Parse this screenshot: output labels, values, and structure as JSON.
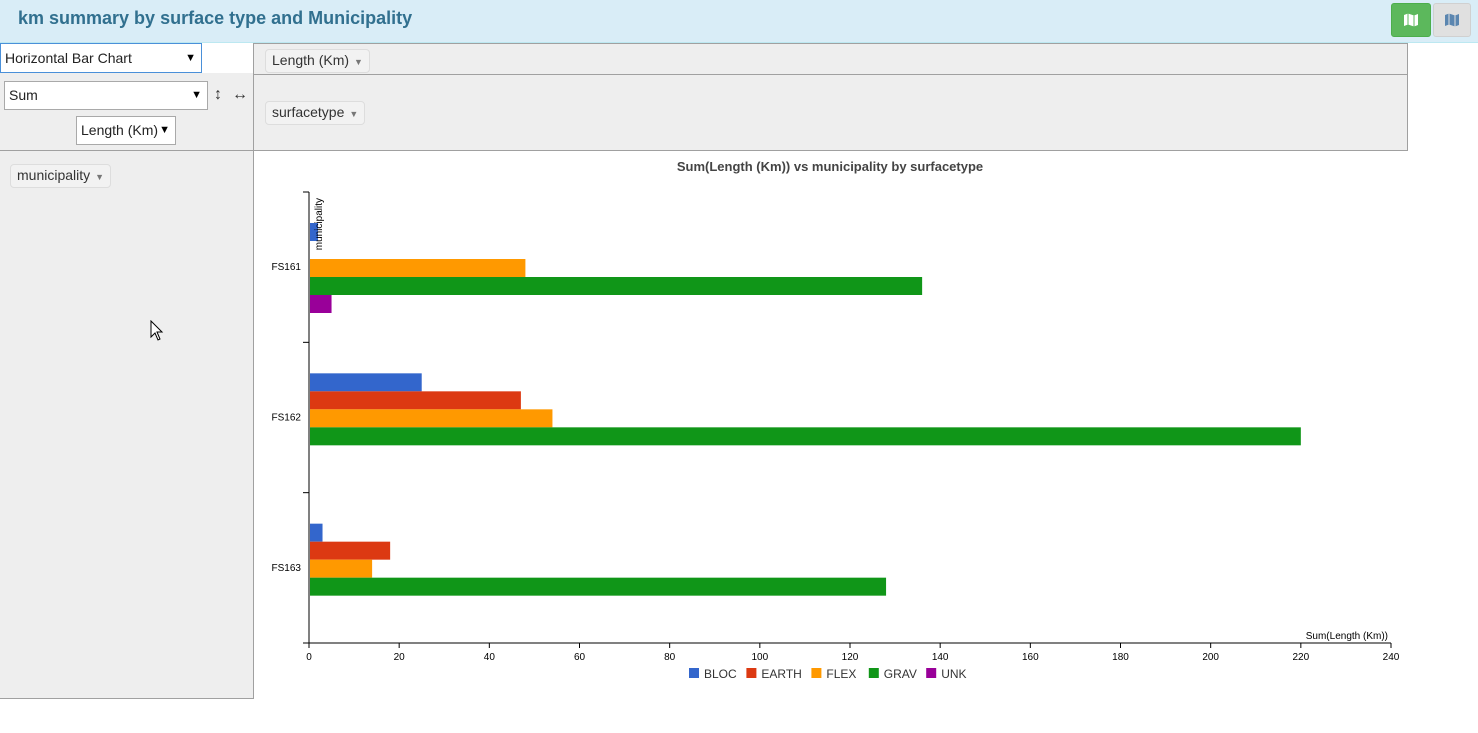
{
  "header": {
    "title": "km summary by surface type and Municipality",
    "buttons": [
      {
        "icon": "map-icon",
        "state": "active",
        "color": "#5cb85c"
      },
      {
        "icon": "map-icon",
        "state": "inactive",
        "color": "#e0e0e0"
      }
    ]
  },
  "controls": {
    "renderer": "Horizontal Bar Chart",
    "aggregator": "Sum",
    "value_field": "Length (Km)",
    "row_order_symbol": "↕",
    "col_order_symbol": "↔"
  },
  "fields": {
    "unused": "Length (Km)",
    "cols": "surfacetype",
    "rows": "municipality"
  },
  "chart_data": {
    "type": "bar",
    "orientation": "horizontal",
    "title": "Sum(Length (Km)) vs municipality by surfacetype",
    "xlabel": "Sum(Length (Km))",
    "ylabel": "municipality",
    "xlim": [
      0,
      240
    ],
    "xticks": [
      0,
      20,
      40,
      60,
      80,
      100,
      120,
      140,
      160,
      180,
      200,
      220,
      240
    ],
    "categories": [
      "FS161",
      "FS162",
      "FS163"
    ],
    "series": [
      {
        "name": "BLOC",
        "color": "#3366cc",
        "values": [
          2,
          25,
          3
        ]
      },
      {
        "name": "EARTH",
        "color": "#dc3912",
        "values": [
          0,
          47,
          18
        ]
      },
      {
        "name": "FLEX",
        "color": "#ff9900",
        "values": [
          48,
          54,
          14
        ]
      },
      {
        "name": "GRAV",
        "color": "#109618",
        "values": [
          136,
          220,
          128
        ]
      },
      {
        "name": "UNK",
        "color": "#990099",
        "values": [
          5,
          0,
          0
        ]
      }
    ],
    "legend_position": "bottom"
  }
}
